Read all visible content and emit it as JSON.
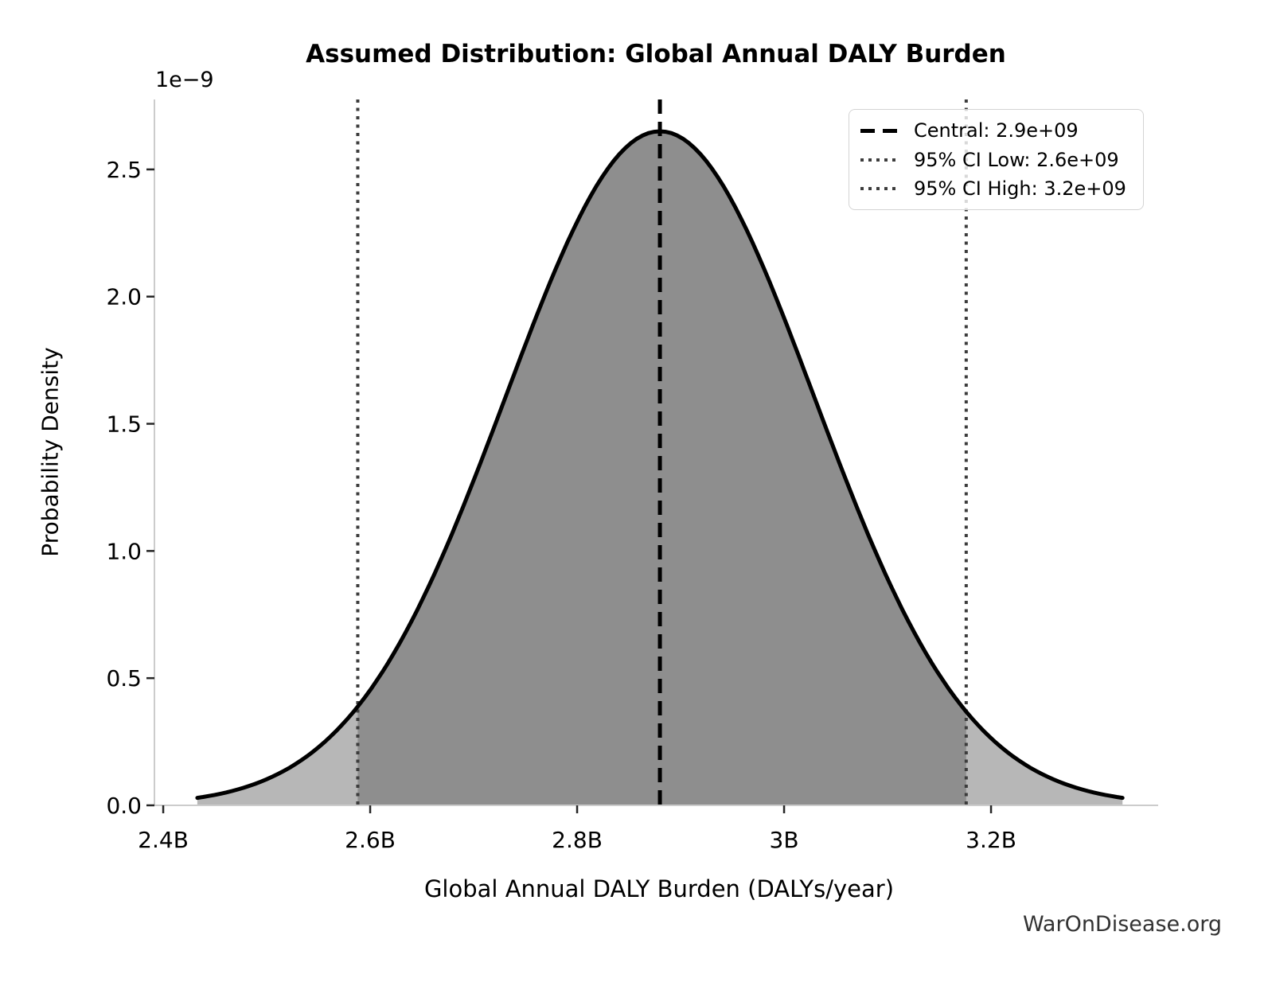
{
  "figure": {
    "title": "Assumed Distribution: Global Annual DALY Burden",
    "watermark": "WarOnDisease.org"
  },
  "chart_data": {
    "type": "area",
    "distribution": "normal",
    "title": "Assumed Distribution: Global Annual DALY Burden",
    "xlabel": "Global Annual DALY Burden (DALYs/year)",
    "ylabel": "Probability Density",
    "y_offset_text": "1e−9",
    "central": 2880000000.0,
    "std": 149000000.0,
    "ci_low": 2588000000.0,
    "ci_high": 3176000000.0,
    "peak_density": 2.65e-09,
    "curve_domain": [
      2433000000.0,
      3327000000.0
    ],
    "xlim": [
      2391500000.0,
      3361500000.0
    ],
    "ylim": [
      0,
      2.775e-09
    ],
    "grid": false,
    "legend_position": "upper right",
    "x_ticks": [
      {
        "value": 2400000000.0,
        "label": "2.4B"
      },
      {
        "value": 2600000000.0,
        "label": "2.6B"
      },
      {
        "value": 2800000000.0,
        "label": "2.8B"
      },
      {
        "value": 3000000000.0,
        "label": "3B"
      },
      {
        "value": 3200000000.0,
        "label": "3.2B"
      }
    ],
    "y_ticks": [
      {
        "value": 0,
        "label": "0.0"
      },
      {
        "value": 5e-10,
        "label": "0.5"
      },
      {
        "value": 1e-09,
        "label": "1.0"
      },
      {
        "value": 1.5e-09,
        "label": "1.5"
      },
      {
        "value": 2e-09,
        "label": "2.0"
      },
      {
        "value": 2.5e-09,
        "label": "2.5"
      }
    ],
    "legend": {
      "entries": [
        {
          "label": "Central: 2.9e+09",
          "style": "dashed",
          "color": "#000000"
        },
        {
          "label": "95% CI Low: 2.6e+09",
          "style": "dotted",
          "color": "#3c3c3c"
        },
        {
          "label": "95% CI High: 3.2e+09",
          "style": "dotted",
          "color": "#3c3c3c"
        }
      ]
    },
    "colors": {
      "curve": "#000000",
      "fill_ci": "#8e8e8e",
      "fill_tail": "#b7b7b7",
      "central_line": "#000000",
      "ci_line": "#3c3c3c",
      "spine": "#cccccc",
      "tick": "#262626",
      "text": "#000000",
      "watermark": "#333333"
    }
  }
}
